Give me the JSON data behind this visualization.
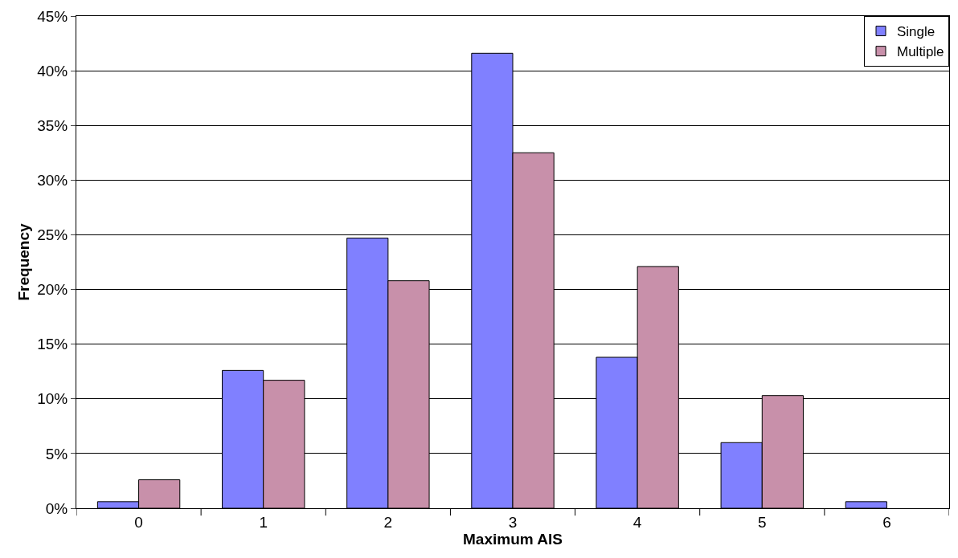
{
  "chart_data": {
    "type": "bar",
    "xlabel": "Maximum AIS",
    "ylabel": "Frequency",
    "categories": [
      "0",
      "1",
      "2",
      "3",
      "4",
      "5",
      "6"
    ],
    "series": [
      {
        "name": "Single",
        "color": "#8080ff",
        "values": [
          0.6,
          12.6,
          24.7,
          41.6,
          13.8,
          6.0,
          0.6
        ]
      },
      {
        "name": "Multiple",
        "color": "#c890aa",
        "values": [
          2.6,
          11.7,
          20.8,
          32.5,
          22.1,
          10.3,
          null
        ]
      }
    ],
    "ylim": [
      0,
      45
    ],
    "yticks": [
      {
        "value": 0,
        "label": "0%"
      },
      {
        "value": 5,
        "label": "5%"
      },
      {
        "value": 10,
        "label": "10%"
      },
      {
        "value": 15,
        "label": "15%"
      },
      {
        "value": 20,
        "label": "20%"
      },
      {
        "value": 25,
        "label": "25%"
      },
      {
        "value": 30,
        "label": "30%"
      },
      {
        "value": 35,
        "label": "35%"
      },
      {
        "value": 40,
        "label": "40%"
      },
      {
        "value": 45,
        "label": "45%"
      }
    ],
    "grid": "y",
    "legend": "top right"
  }
}
